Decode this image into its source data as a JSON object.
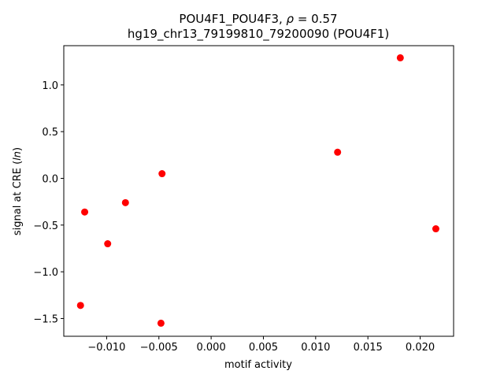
{
  "chart_data": {
    "type": "scatter",
    "title_line1_prefix": "POU4F1_POU4F3, ",
    "title_line1_rho": "ρ",
    "title_line1_suffix": " = 0.57",
    "title_line2": "hg19_chr13_79199810_79200090 (POU4F1)",
    "xlabel": "motif activity",
    "ylabel_prefix": "signal at CRE (",
    "ylabel_ln": "ln",
    "ylabel_suffix": ")",
    "xlim": [
      -0.0141,
      0.0232
    ],
    "ylim": [
      -1.69,
      1.42
    ],
    "xticks": [
      -0.01,
      -0.005,
      0.0,
      0.005,
      0.01,
      0.015,
      0.02
    ],
    "xtick_labels": [
      "−0.010",
      "−0.005",
      "0.000",
      "0.005",
      "0.010",
      "0.015",
      "0.020"
    ],
    "yticks": [
      -1.5,
      -1.0,
      -0.5,
      0.0,
      0.5,
      1.0
    ],
    "ytick_labels": [
      "−1.5",
      "−1.0",
      "−0.5",
      "0.0",
      "0.5",
      "1.0"
    ],
    "grid": false,
    "marker_color": "#ff0000",
    "points": [
      {
        "x": -0.0125,
        "y": -1.36
      },
      {
        "x": -0.0121,
        "y": -0.36
      },
      {
        "x": -0.0099,
        "y": -0.7
      },
      {
        "x": -0.0082,
        "y": -0.26
      },
      {
        "x": -0.0047,
        "y": 0.05
      },
      {
        "x": -0.0048,
        "y": -1.55
      },
      {
        "x": 0.0121,
        "y": 0.28
      },
      {
        "x": 0.0181,
        "y": 1.29
      },
      {
        "x": 0.0215,
        "y": -0.54
      }
    ]
  }
}
